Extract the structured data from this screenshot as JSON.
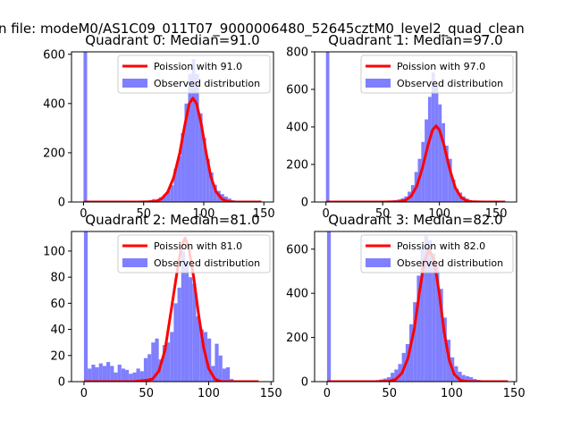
{
  "suptitle": "n file: modeM0/AS1C09_011T07_9000006480_52645cztM0_level2_quad_clean",
  "colors": {
    "bar": "#7f7fff",
    "poisson": "#ff0000",
    "axis": "#000000"
  },
  "legend": {
    "poisson_prefix": "Poission with",
    "observed": "Observed distribution"
  },
  "chart_data": [
    {
      "type": "bar",
      "title": "Quadrant 0: Median=91.0",
      "lambda": 91.0,
      "lambda_label": "91.0",
      "xlim": [
        -10,
        158
      ],
      "ylim": [
        0,
        610
      ],
      "xticks": [
        0,
        50,
        100,
        150
      ],
      "yticks": [
        0,
        200,
        400,
        600
      ],
      "bin_width": 3,
      "bins": [
        [
          0,
          610
        ],
        [
          45,
          3
        ],
        [
          48,
          5
        ],
        [
          51,
          6
        ],
        [
          54,
          8
        ],
        [
          57,
          12
        ],
        [
          60,
          10
        ],
        [
          63,
          20
        ],
        [
          66,
          30
        ],
        [
          69,
          45
        ],
        [
          72,
          68
        ],
        [
          75,
          135
        ],
        [
          78,
          185
        ],
        [
          81,
          280
        ],
        [
          84,
          400
        ],
        [
          87,
          520
        ],
        [
          90,
          580
        ],
        [
          93,
          520
        ],
        [
          96,
          360
        ],
        [
          99,
          260
        ],
        [
          102,
          175
        ],
        [
          105,
          120
        ],
        [
          108,
          70
        ],
        [
          111,
          45
        ],
        [
          114,
          32
        ],
        [
          117,
          22
        ],
        [
          120,
          14
        ],
        [
          123,
          7
        ],
        [
          126,
          4
        ],
        [
          129,
          2
        ]
      ],
      "poisson": {
        "x": [
          0,
          45,
          55,
          60,
          65,
          70,
          75,
          80,
          84,
          88,
          91,
          94,
          98,
          102,
          106,
          110,
          115,
          120,
          125,
          135,
          148
        ],
        "y": [
          0,
          0,
          1,
          3,
          13,
          40,
          99,
          199,
          307,
          400,
          422,
          400,
          315,
          199,
          102,
          44,
          12,
          2,
          0,
          0,
          0
        ]
      }
    },
    {
      "type": "bar",
      "title": "Quadrant 1: Median=97.0",
      "lambda": 97.0,
      "lambda_label": "97.0",
      "xlim": [
        -10,
        168
      ],
      "ylim": [
        0,
        800
      ],
      "xticks": [
        0,
        50,
        100,
        150
      ],
      "yticks": [
        0,
        200,
        400,
        600,
        800
      ],
      "bin_width": 3,
      "bins": [
        [
          0,
          800
        ],
        [
          54,
          5
        ],
        [
          57,
          8
        ],
        [
          60,
          10
        ],
        [
          63,
          14
        ],
        [
          66,
          20
        ],
        [
          69,
          30
        ],
        [
          72,
          55
        ],
        [
          75,
          90
        ],
        [
          78,
          160
        ],
        [
          81,
          230
        ],
        [
          84,
          320
        ],
        [
          87,
          440
        ],
        [
          90,
          560
        ],
        [
          93,
          690
        ],
        [
          96,
          620
        ],
        [
          99,
          520
        ],
        [
          102,
          420
        ],
        [
          105,
          300
        ],
        [
          108,
          230
        ],
        [
          111,
          120
        ],
        [
          114,
          70
        ],
        [
          117,
          50
        ],
        [
          120,
          30
        ],
        [
          123,
          18
        ],
        [
          126,
          10
        ],
        [
          129,
          6
        ],
        [
          132,
          3
        ]
      ],
      "poisson": {
        "x": [
          0,
          50,
          60,
          65,
          70,
          75,
          80,
          85,
          90,
          94,
          97,
          100,
          104,
          109,
          114,
          119,
          124,
          130,
          140,
          158
        ],
        "y": [
          0,
          0,
          1,
          2,
          9,
          30,
          84,
          180,
          305,
          384,
          405,
          384,
          304,
          176,
          76,
          25,
          6,
          1,
          0,
          0
        ]
      }
    },
    {
      "type": "bar",
      "title": "Quadrant 2: Median=81.0",
      "lambda": 81.0,
      "lambda_label": "81.0",
      "xlim": [
        -10,
        152
      ],
      "ylim": [
        0,
        115
      ],
      "xticks": [
        0,
        50,
        100,
        150
      ],
      "yticks": [
        0,
        20,
        40,
        60,
        80,
        100
      ],
      "bin_width": 3,
      "bins": [
        [
          0,
          115
        ],
        [
          3,
          10
        ],
        [
          6,
          13
        ],
        [
          9,
          11
        ],
        [
          12,
          14
        ],
        [
          15,
          12
        ],
        [
          18,
          15
        ],
        [
          21,
          12
        ],
        [
          24,
          7
        ],
        [
          27,
          13
        ],
        [
          30,
          10
        ],
        [
          33,
          9
        ],
        [
          36,
          6
        ],
        [
          39,
          7
        ],
        [
          42,
          10
        ],
        [
          45,
          8
        ],
        [
          48,
          18
        ],
        [
          51,
          21
        ],
        [
          54,
          30
        ],
        [
          57,
          33
        ],
        [
          60,
          17
        ],
        [
          63,
          28
        ],
        [
          66,
          30
        ],
        [
          69,
          38
        ],
        [
          72,
          60
        ],
        [
          75,
          72
        ],
        [
          78,
          100
        ],
        [
          81,
          92
        ],
        [
          84,
          80
        ],
        [
          87,
          75
        ],
        [
          90,
          50
        ],
        [
          93,
          40
        ],
        [
          96,
          38
        ],
        [
          99,
          33
        ],
        [
          102,
          12
        ],
        [
          105,
          29
        ],
        [
          108,
          20
        ],
        [
          111,
          10
        ],
        [
          114,
          11
        ],
        [
          117,
          2
        ],
        [
          120,
          1
        ],
        [
          123,
          1
        ]
      ],
      "poisson": {
        "x": [
          0,
          40,
          50,
          55,
          60,
          65,
          70,
          74,
          78,
          81,
          84,
          88,
          92,
          96,
          100,
          105,
          110,
          115,
          125,
          140
        ],
        "y": [
          0,
          0,
          1,
          2,
          8,
          24,
          55,
          80,
          103,
          110,
          103,
          80,
          51,
          26,
          10,
          2,
          0,
          0,
          0,
          0
        ]
      }
    },
    {
      "type": "bar",
      "title": "Quadrant 3: Median=82.0",
      "lambda": 82.0,
      "lambda_label": "82.0",
      "xlim": [
        -10,
        152
      ],
      "ylim": [
        0,
        680
      ],
      "xticks": [
        0,
        50,
        100,
        150
      ],
      "yticks": [
        0,
        200,
        400,
        600
      ],
      "bin_width": 3,
      "bins": [
        [
          0,
          680
        ],
        [
          30,
          4
        ],
        [
          33,
          5
        ],
        [
          36,
          6
        ],
        [
          39,
          7
        ],
        [
          42,
          10
        ],
        [
          45,
          14
        ],
        [
          48,
          20
        ],
        [
          51,
          40
        ],
        [
          54,
          55
        ],
        [
          57,
          80
        ],
        [
          60,
          130
        ],
        [
          63,
          170
        ],
        [
          66,
          260
        ],
        [
          69,
          360
        ],
        [
          72,
          480
        ],
        [
          75,
          600
        ],
        [
          78,
          660
        ],
        [
          81,
          640
        ],
        [
          84,
          580
        ],
        [
          87,
          520
        ],
        [
          90,
          420
        ],
        [
          93,
          290
        ],
        [
          96,
          190
        ],
        [
          99,
          110
        ],
        [
          102,
          70
        ],
        [
          105,
          45
        ],
        [
          108,
          30
        ],
        [
          111,
          25
        ],
        [
          114,
          20
        ],
        [
          117,
          12
        ],
        [
          120,
          8
        ]
      ],
      "poisson": {
        "x": [
          0,
          40,
          50,
          55,
          60,
          65,
          70,
          74,
          78,
          82,
          86,
          90,
          94,
          98,
          102,
          107,
          112,
          118,
          125,
          145
        ],
        "y": [
          0,
          0,
          2,
          10,
          38,
          108,
          240,
          402,
          545,
          600,
          543,
          400,
          220,
          96,
          33,
          6,
          1,
          0,
          0,
          0
        ]
      }
    }
  ]
}
